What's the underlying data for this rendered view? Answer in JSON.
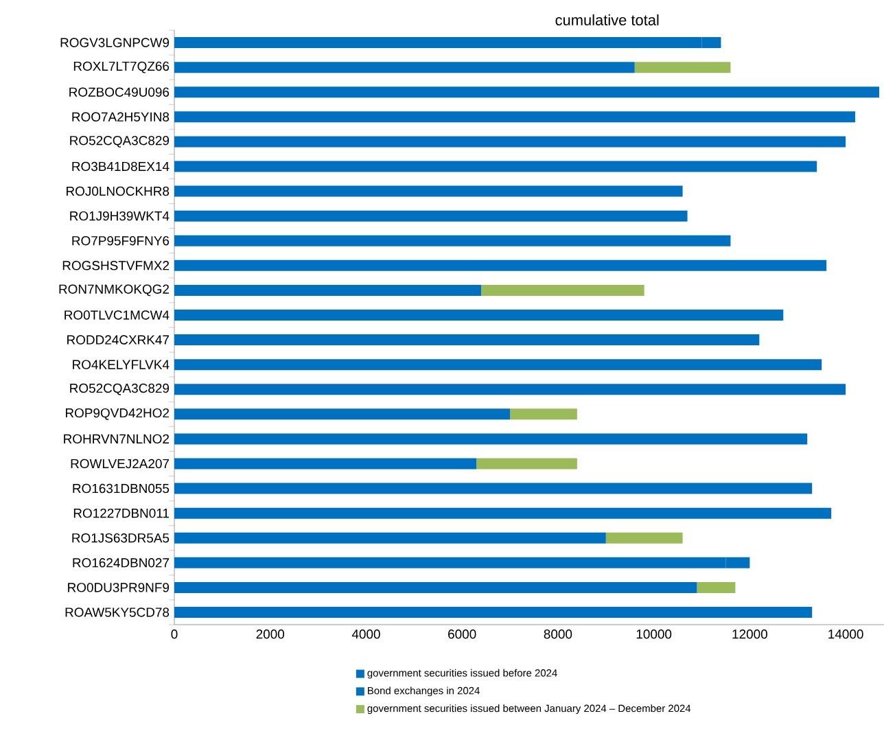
{
  "chart_data": {
    "type": "bar",
    "orientation": "horizontal",
    "stacked": true,
    "title": "cumulative total",
    "categories": [
      "ROGV3LGNPCW9",
      "ROXL7LT7QZ66",
      "ROZBOC49U096",
      "ROO7A2H5YIN8",
      "RO52CQA3C829",
      "RO3B41D8EX14",
      "ROJ0LNOCKHR8",
      "RO1J9H39WKT4",
      "RO7P95F9FNY6",
      "ROGSHSTVFMX2",
      "RON7NMKOKQG2",
      "RO0TLVC1MCW4",
      "RODD24CXRK47",
      "RO4KELYFLVK4",
      "RO52CQA3C829",
      "ROP9QVD42HO2",
      "ROHRVN7NLNO2",
      "ROWLVEJ2A207",
      "RO1631DBN055",
      "RO1227DBN011",
      "RO1JS63DR5A5",
      "RO1624DBN027",
      "RO0DU3PR9NF9",
      "ROAW5KY5CD78"
    ],
    "series": [
      {
        "name": "government securities issued before 2024",
        "color": "#0070c0",
        "values": [
          11000,
          9600,
          14700,
          14200,
          14000,
          13400,
          10600,
          10700,
          11600,
          13600,
          6400,
          12700,
          12200,
          13500,
          14000,
          7000,
          13200,
          6300,
          13300,
          13700,
          9000,
          11500,
          10900,
          13300
        ]
      },
      {
        "name": "Bond exchanges in 2024",
        "color": "#0070c0",
        "values": [
          400,
          0,
          0,
          0,
          0,
          0,
          0,
          0,
          0,
          0,
          0,
          0,
          0,
          0,
          0,
          0,
          0,
          0,
          0,
          0,
          0,
          500,
          0,
          0
        ]
      },
      {
        "name": "government securities issued between January 2024 – December 2024",
        "color": "#9bbb59",
        "values": [
          0,
          2000,
          0,
          0,
          0,
          0,
          0,
          0,
          0,
          0,
          3400,
          0,
          0,
          0,
          0,
          1400,
          0,
          2100,
          0,
          0,
          1600,
          0,
          800,
          0
        ]
      }
    ],
    "xlim": [
      0,
      14800
    ],
    "xticks": [
      0,
      2000,
      4000,
      6000,
      8000,
      10000,
      12000,
      14000
    ],
    "legend": "bottom",
    "grid": false
  }
}
